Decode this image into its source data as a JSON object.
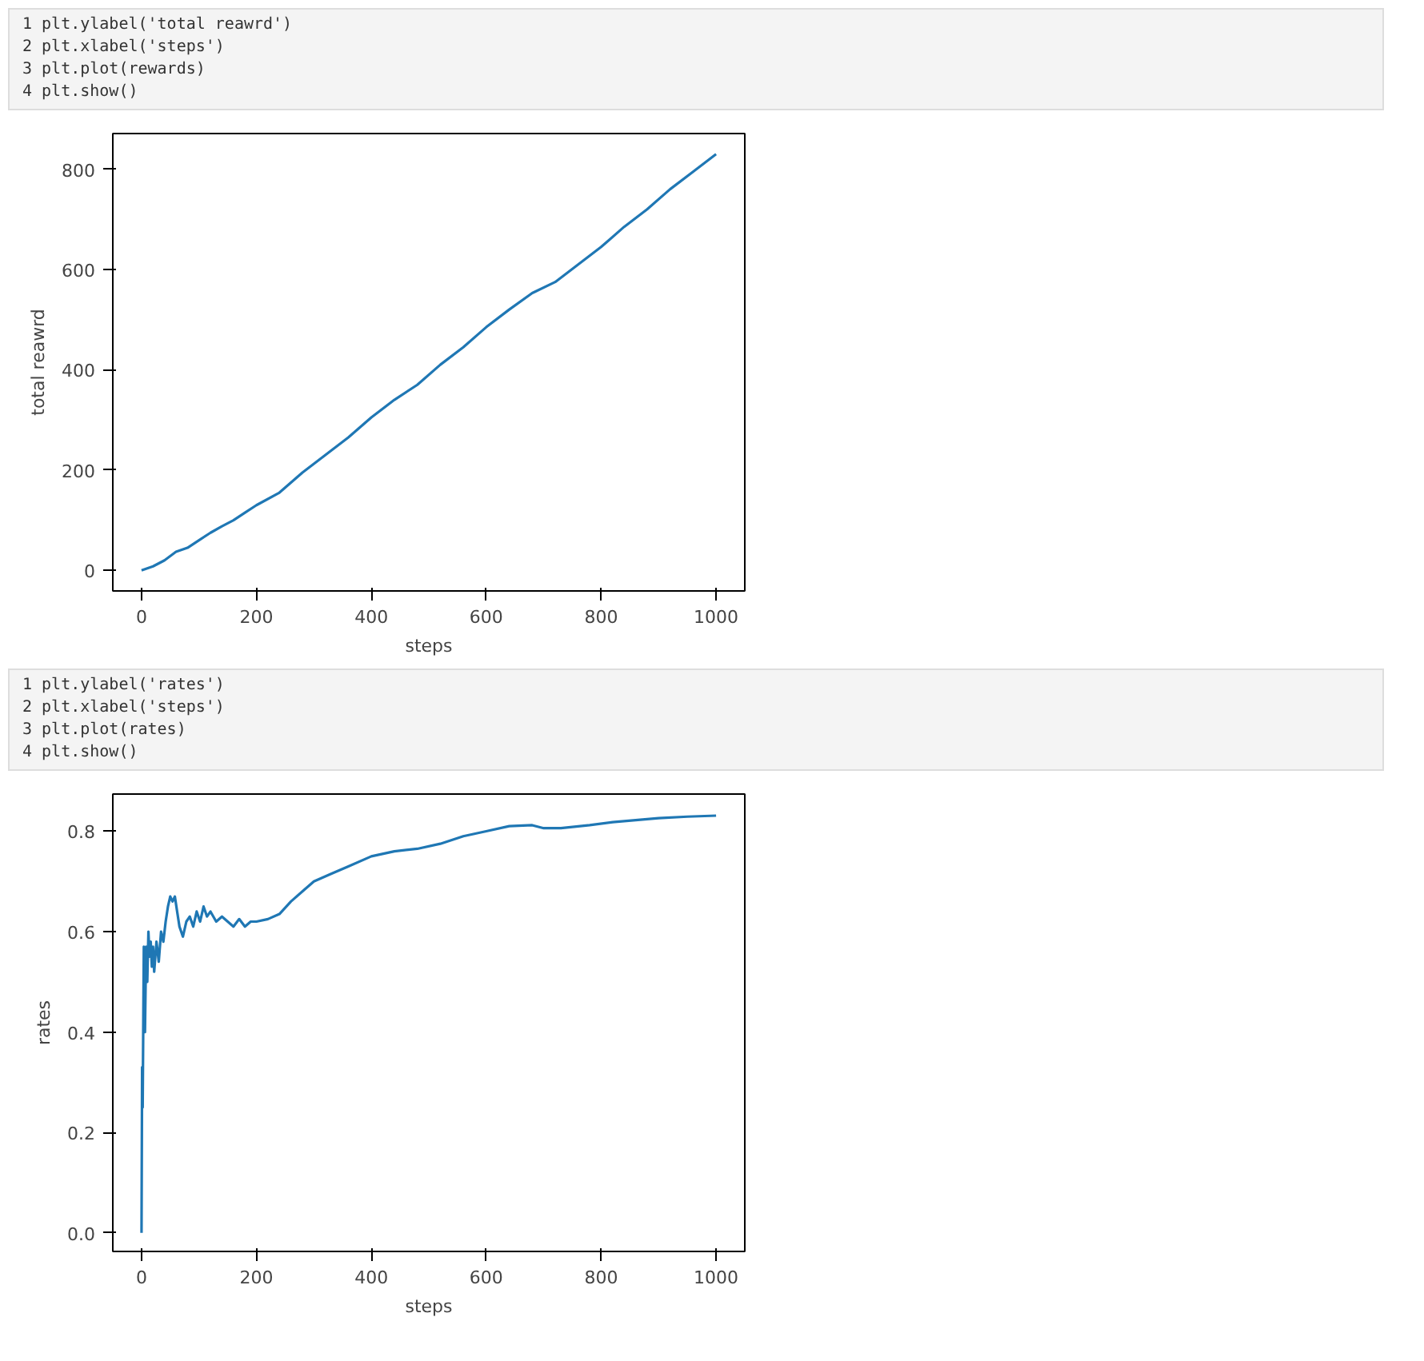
{
  "chart_data": [
    {
      "type": "line",
      "xlabel": "steps",
      "ylabel": "total reawrd",
      "annotations": [
        "1 plt.ylabel('total reawrd')",
        "2 plt.xlabel('steps')",
        "3 plt.plot(rewards)",
        "4 plt.show()"
      ],
      "xlim": [
        -50,
        1050
      ],
      "ylim": [
        -41,
        871
      ],
      "xticks": [
        0,
        200,
        400,
        600,
        800,
        1000
      ],
      "yticks": [
        0,
        200,
        400,
        600,
        800
      ],
      "grid": false,
      "marker": "none",
      "line_style": "solid",
      "series": [
        {
          "color": "#1f77b4",
          "x": [
            0,
            20,
            40,
            60,
            80,
            100,
            120,
            140,
            160,
            180,
            200,
            240,
            280,
            320,
            360,
            400,
            440,
            480,
            520,
            560,
            600,
            640,
            680,
            720,
            760,
            800,
            840,
            880,
            920,
            960,
            1000
          ],
          "values": [
            0,
            8,
            20,
            37,
            45,
            60,
            75,
            88,
            100,
            115,
            130,
            155,
            195,
            230,
            265,
            305,
            340,
            370,
            410,
            445,
            485,
            520,
            553,
            575,
            610,
            645,
            685,
            720,
            760,
            795,
            830
          ]
        }
      ]
    },
    {
      "type": "line",
      "xlabel": "steps",
      "ylabel": "rates",
      "annotations": [
        "1 plt.ylabel('rates')",
        "2 plt.xlabel('steps')",
        "3 plt.plot(rates)",
        "4 plt.show()"
      ],
      "xlim": [
        -50,
        1050
      ],
      "ylim": [
        -0.037,
        0.874
      ],
      "xticks": [
        0,
        200,
        400,
        600,
        800,
        1000
      ],
      "yticks": [
        {
          "value": 0,
          "label": "0.0"
        },
        0.2,
        0.4,
        0.6,
        0.8
      ],
      "grid": false,
      "marker": "none",
      "line_style": "solid",
      "series": [
        {
          "color": "#1f77b4",
          "x": [
            0,
            1,
            2,
            4,
            6,
            8,
            10,
            12,
            14,
            16,
            18,
            20,
            22,
            26,
            30,
            34,
            38,
            42,
            46,
            50,
            54,
            58,
            62,
            66,
            72,
            78,
            84,
            90,
            96,
            102,
            108,
            114,
            120,
            130,
            140,
            150,
            160,
            170,
            180,
            190,
            200,
            220,
            240,
            260,
            280,
            300,
            330,
            360,
            400,
            440,
            480,
            520,
            560,
            600,
            640,
            680,
            700,
            730,
            780,
            820,
            860,
            900,
            950,
            1000
          ],
          "values": [
            0,
            0.33,
            0.25,
            0.57,
            0.4,
            0.57,
            0.5,
            0.6,
            0.55,
            0.58,
            0.53,
            0.57,
            0.52,
            0.58,
            0.54,
            0.6,
            0.58,
            0.62,
            0.65,
            0.67,
            0.66,
            0.67,
            0.64,
            0.61,
            0.59,
            0.62,
            0.63,
            0.61,
            0.64,
            0.62,
            0.65,
            0.63,
            0.64,
            0.62,
            0.63,
            0.62,
            0.61,
            0.625,
            0.61,
            0.62,
            0.62,
            0.625,
            0.635,
            0.66,
            0.68,
            0.7,
            0.715,
            0.73,
            0.75,
            0.76,
            0.765,
            0.775,
            0.79,
            0.8,
            0.81,
            0.812,
            0.806,
            0.806,
            0.812,
            0.818,
            0.822,
            0.826,
            0.829,
            0.831
          ]
        }
      ]
    }
  ]
}
